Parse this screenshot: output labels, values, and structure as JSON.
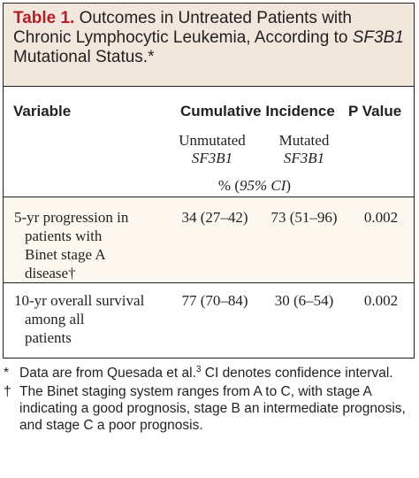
{
  "table": {
    "number": "Table 1.",
    "title_before": "Outcomes in Untreated Patients with Chronic Lymphocytic Leukemia, According to",
    "title_italic": "SF3B1",
    "title_after": "Mutational Status.*",
    "headers": {
      "variable": "Variable",
      "cumulative_incidence": "Cumulative Incidence",
      "p_value": "P Value"
    },
    "subheaders": {
      "unmutated_line1": "Unmutated",
      "unmutated_line2": "SF3B1",
      "mutated_line1": "Mutated",
      "mutated_line2": "SF3B1",
      "ci_prefix": "% (",
      "ci_italic": "95% CI",
      "ci_suffix": ")"
    },
    "rows": [
      {
        "variable_lines": [
          "5-yr progression in",
          "patients with",
          "Binet stage A",
          "disease†"
        ],
        "unmutated": "34 (27–42)",
        "mutated": "73 (51–96)",
        "p_value": "0.002"
      },
      {
        "variable_lines": [
          "10-yr overall survival",
          "among all",
          "patients"
        ],
        "unmutated": "77 (70–84)",
        "mutated": "30 (6–54)",
        "p_value": "0.002"
      }
    ]
  },
  "footnotes": [
    {
      "mark": "*",
      "text_before": "Data are from Quesada et al.",
      "superscript": "3",
      "text_after": " CI denotes confidence interval."
    },
    {
      "mark": "†",
      "text_before": "The Binet staging system ranges from A to C, with stage A indicating a good prognosis, stage B an intermediate prognosis, and stage C a poor prognosis.",
      "superscript": "",
      "text_after": ""
    }
  ],
  "colors": {
    "title_number": "#b3202a",
    "title_band": "#f1e7dd",
    "row_highlight": "#fdf8ef",
    "text": "#231f20"
  }
}
